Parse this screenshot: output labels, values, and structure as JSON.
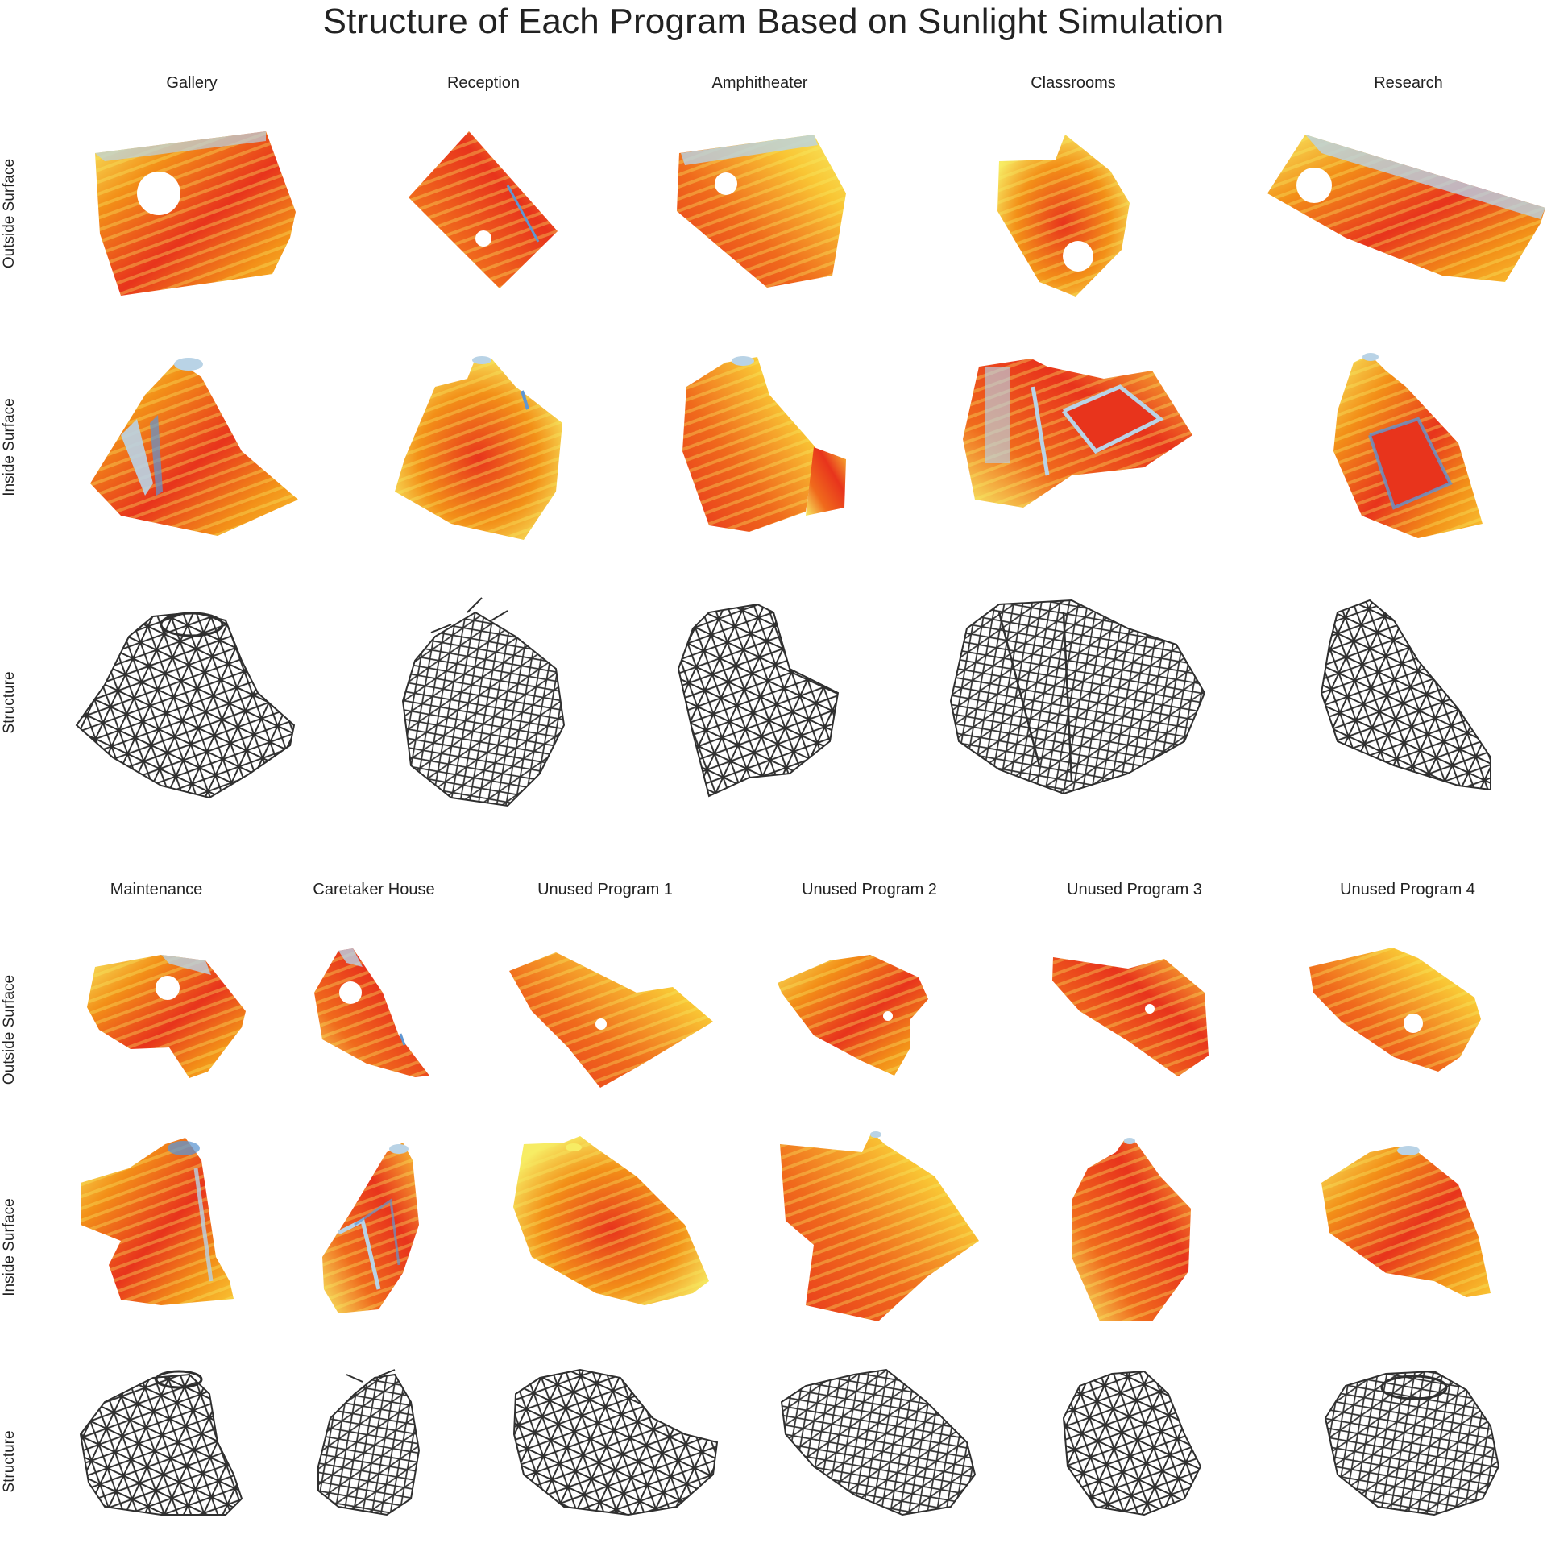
{
  "title": "Structure of Each Program Based on Sunlight Simulation",
  "colors": {
    "hot": "#e8341c",
    "warm": "#f39018",
    "mid": "#f9c534",
    "cool": "#f7ec64",
    "pale": "#b9d3e6",
    "blue": "#5f97d2",
    "structure": "#2f2f2f"
  },
  "rows": [
    "Outside Surface",
    "Inside Surface",
    "Structure"
  ],
  "top_group": {
    "programs": [
      "Gallery",
      "Reception",
      "Amphitheater",
      "Classrooms",
      "Research"
    ]
  },
  "bottom_group": {
    "programs": [
      "Maintenance",
      "Caretaker House",
      "Unused Program 1",
      "Unused Program 2",
      "Unused Program 3",
      "Unused Program 4"
    ]
  }
}
